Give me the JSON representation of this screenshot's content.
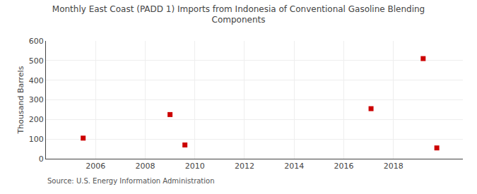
{
  "chart_data": {
    "type": "scatter",
    "title": "Monthly East Coast (PADD 1) Imports from Indonesia of Conventional Gasoline Blending\nComponents",
    "ylabel": "Thousand Barrels",
    "source": "Source: U.S. Energy Information Administration",
    "x": [
      2005.5,
      2009.0,
      2009.6,
      2017.1,
      2019.2,
      2019.75
    ],
    "values": [
      105,
      225,
      70,
      255,
      510,
      55
    ],
    "color": "#cc0000",
    "marker": "square",
    "xlim": [
      2004.0,
      2020.8
    ],
    "xticks": [
      2006,
      2008,
      2010,
      2012,
      2014,
      2016,
      2018
    ],
    "ylim": [
      0,
      600
    ],
    "yticks": [
      0,
      100,
      200,
      300,
      400,
      500,
      600
    ],
    "grid": true
  }
}
